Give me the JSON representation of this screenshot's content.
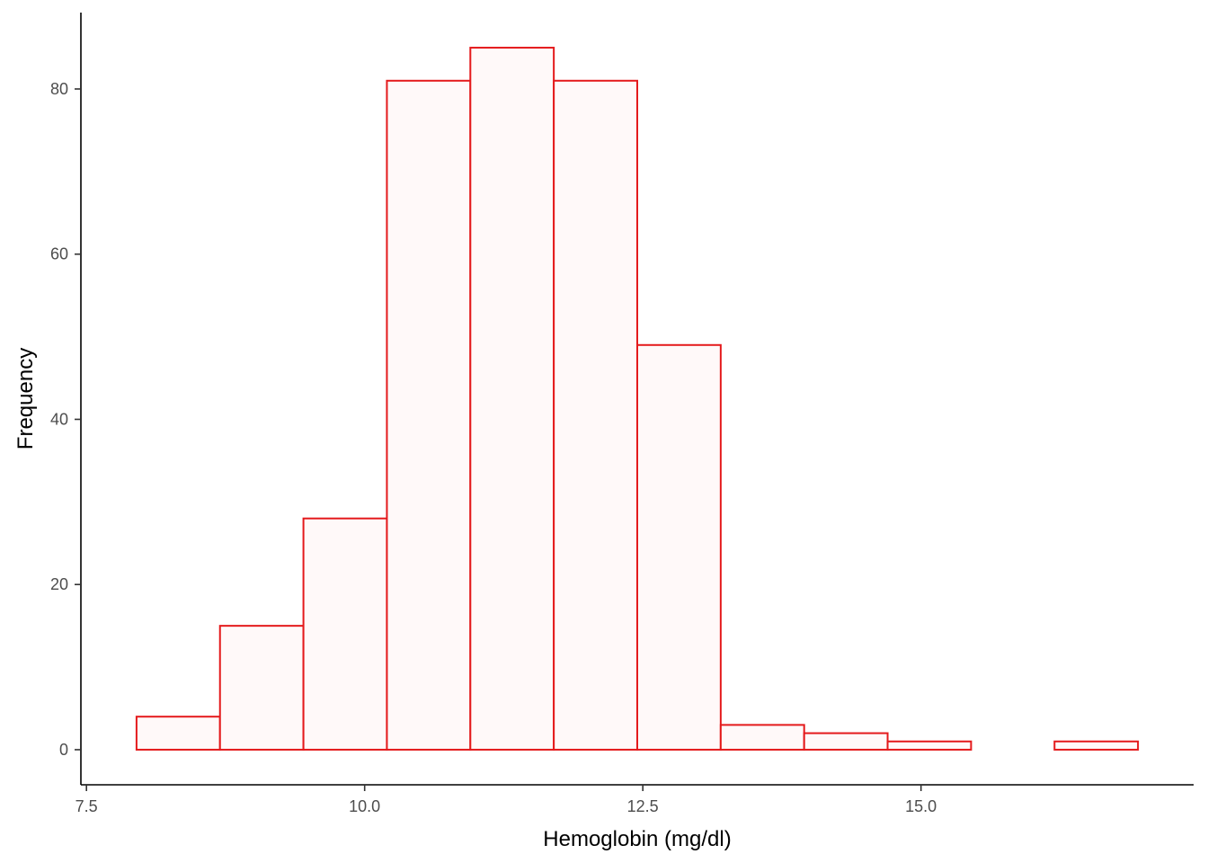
{
  "chart_data": {
    "type": "bar",
    "title": "",
    "xlabel": "Hemoglobin (mg/dl)",
    "ylabel": "Frequency",
    "bin_edges": [
      7.95,
      8.7,
      9.45,
      10.2,
      10.95,
      11.7,
      12.45,
      13.2,
      13.95,
      14.7,
      15.45,
      16.2,
      16.95
    ],
    "values": [
      4,
      15,
      28,
      81,
      85,
      81,
      49,
      3,
      2,
      1,
      0,
      1
    ],
    "xlim": [
      7.45,
      17.45
    ],
    "ylim": [
      -4.25,
      89.25
    ],
    "x_ticks": [
      7.5,
      10.0,
      12.5,
      15.0
    ],
    "x_tick_labels": [
      "7.5",
      "10.0",
      "12.5",
      "15.0"
    ],
    "y_ticks": [
      0,
      20,
      40,
      60,
      80
    ],
    "y_tick_labels": [
      "0",
      "20",
      "40",
      "60",
      "80"
    ],
    "grid": false,
    "legend": "none",
    "bar_fill": "#fff9f9",
    "bar_stroke": "#e41a1c"
  }
}
